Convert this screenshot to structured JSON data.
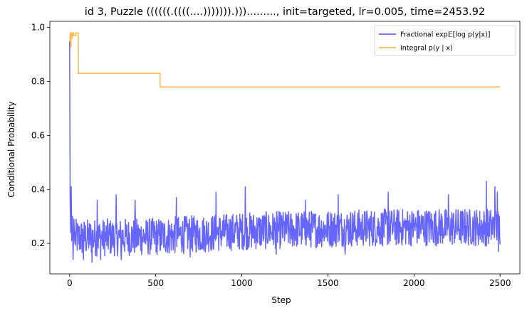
{
  "chart_data": {
    "type": "line",
    "title": "id 3, Puzzle ((((((.((((....))))))).)))........., init=targeted, lr=0.005, time=2453.92",
    "xlabel": "Step",
    "ylabel": "Conditional Probability",
    "xlim": [
      -115,
      2615
    ],
    "ylim": [
      0.087,
      1.023
    ],
    "xticks": [
      0,
      500,
      1000,
      1500,
      2000,
      2500
    ],
    "xtick_labels": [
      "0",
      "500",
      "1000",
      "1500",
      "2000",
      "2500"
    ],
    "yticks": [
      0.2,
      0.4,
      0.6,
      0.8,
      1.0
    ],
    "ytick_labels": [
      "0.2",
      "0.4",
      "0.6",
      "0.8",
      "1.0"
    ],
    "grid": false,
    "legend_position": "top-right",
    "series": [
      {
        "name": "Fractional exp𝔼[log p(y|x)]",
        "color": "#6666ff",
        "kind": "noisy",
        "head": [
          [
            0,
            0.95
          ],
          [
            3,
            0.35
          ],
          [
            6,
            0.24
          ],
          [
            9,
            0.41
          ],
          [
            12,
            0.21
          ],
          [
            16,
            0.3
          ],
          [
            20,
            0.14
          ],
          [
            25,
            0.29
          ],
          [
            30,
            0.2
          ]
        ],
        "x_range": [
          30,
          2500
        ],
        "step": 2,
        "trend": [
          [
            30,
            0.22
          ],
          [
            500,
            0.225
          ],
          [
            1000,
            0.245
          ],
          [
            1500,
            0.255
          ],
          [
            2000,
            0.26
          ],
          [
            2500,
            0.26
          ]
        ],
        "noise_amplitude": 0.07,
        "spikes": [
          [
            160,
            0.36
          ],
          [
            270,
            0.38
          ],
          [
            380,
            0.36
          ],
          [
            620,
            0.37
          ],
          [
            850,
            0.39
          ],
          [
            1020,
            0.41
          ],
          [
            1370,
            0.36
          ],
          [
            1560,
            0.38
          ],
          [
            1850,
            0.39
          ],
          [
            2200,
            0.38
          ],
          [
            2420,
            0.43
          ],
          [
            2470,
            0.41
          ],
          [
            2485,
            0.39
          ]
        ],
        "dips": [
          [
            80,
            0.14
          ],
          [
            130,
            0.13
          ],
          [
            180,
            0.14
          ],
          [
            300,
            0.14
          ],
          [
            700,
            0.15
          ],
          [
            1200,
            0.16
          ],
          [
            1600,
            0.16
          ],
          [
            2490,
            0.17
          ]
        ]
      },
      {
        "name": "Integral p(y | x)",
        "color": "#ffbb55",
        "kind": "step",
        "x": [
          0,
          2,
          4,
          6,
          8,
          10,
          12,
          14,
          16,
          18,
          20,
          22,
          24,
          30,
          36,
          42,
          45,
          50,
          525,
          2500
        ],
        "y": [
          0.95,
          0.97,
          0.98,
          0.93,
          0.97,
          0.98,
          0.96,
          0.97,
          0.98,
          0.97,
          0.98,
          0.98,
          0.97,
          0.97,
          0.98,
          0.98,
          0.98,
          0.83,
          0.78,
          0.78
        ]
      }
    ]
  }
}
